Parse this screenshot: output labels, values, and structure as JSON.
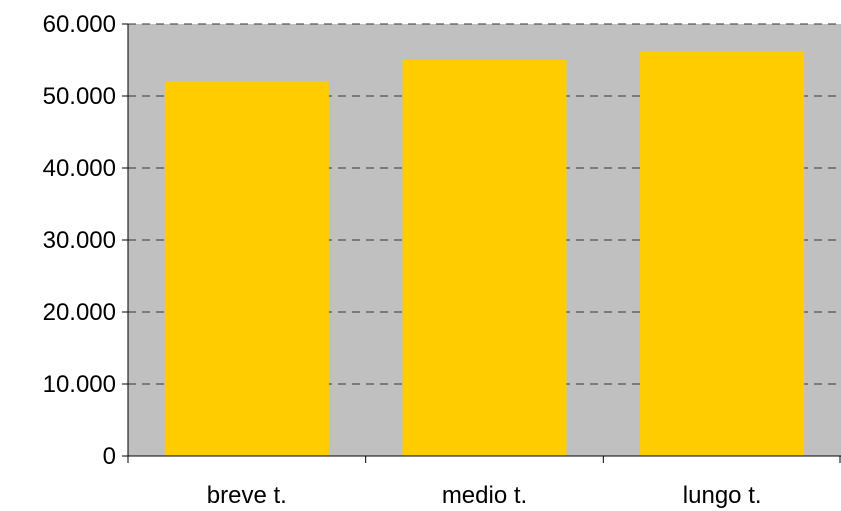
{
  "chart_data": {
    "type": "bar",
    "categories": [
      "breve t.",
      "medio t.",
      "lungo t."
    ],
    "values": [
      52000,
      55000,
      56200
    ],
    "ylim": [
      0,
      60000
    ],
    "yticks": [
      0,
      10000,
      20000,
      30000,
      40000,
      50000,
      60000
    ],
    "ytick_labels": [
      "0",
      "10.000",
      "20.000",
      "30.000",
      "40.000",
      "50.000",
      "60.000"
    ],
    "grid": true,
    "legend": "none",
    "colors": {
      "bar": "#FFCC00",
      "plot_background": "#C0C0C0",
      "gridline": "#333333",
      "axis": "#000000"
    }
  }
}
